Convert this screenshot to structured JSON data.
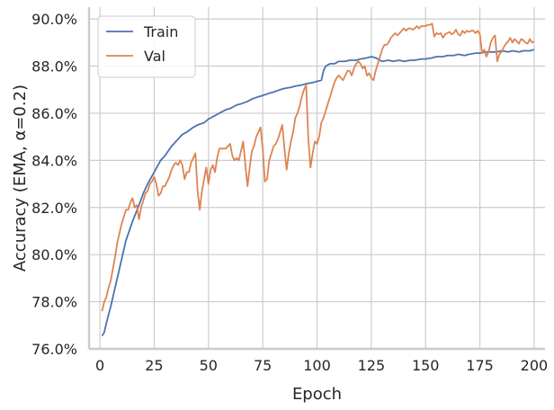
{
  "chart_data": {
    "type": "line",
    "title": "",
    "xlabel": "Epoch",
    "ylabel": "Accuracy (EMA, α=0.2)",
    "xlim": [
      -5,
      205
    ],
    "ylim": [
      0.76,
      0.905
    ],
    "xticks": [
      0,
      25,
      50,
      75,
      100,
      125,
      150,
      175,
      200
    ],
    "xtick_labels": [
      "0",
      "25",
      "50",
      "75",
      "100",
      "125",
      "150",
      "175",
      "200"
    ],
    "yticks": [
      0.76,
      0.78,
      0.8,
      0.82,
      0.84,
      0.86,
      0.88,
      0.9
    ],
    "ytick_labels": [
      "76.0%",
      "78.0%",
      "80.0%",
      "82.0%",
      "84.0%",
      "86.0%",
      "88.0%",
      "90.0%"
    ],
    "grid": true,
    "legend_position": "top-left",
    "series": [
      {
        "name": "Train",
        "color": "#4c72b0",
        "points": [
          [
            1,
            0.7655
          ],
          [
            2,
            0.767
          ],
          [
            3,
            0.771
          ],
          [
            5,
            0.778
          ],
          [
            8,
            0.79
          ],
          [
            10,
            0.798
          ],
          [
            12,
            0.806
          ],
          [
            15,
            0.814
          ],
          [
            18,
            0.821
          ],
          [
            20,
            0.826
          ],
          [
            22,
            0.83
          ],
          [
            25,
            0.835
          ],
          [
            28,
            0.84
          ],
          [
            30,
            0.842
          ],
          [
            33,
            0.846
          ],
          [
            35,
            0.848
          ],
          [
            38,
            0.851
          ],
          [
            40,
            0.852
          ],
          [
            43,
            0.854
          ],
          [
            45,
            0.855
          ],
          [
            48,
            0.856
          ],
          [
            50,
            0.8575
          ],
          [
            53,
            0.859
          ],
          [
            55,
            0.86
          ],
          [
            58,
            0.8615
          ],
          [
            60,
            0.862
          ],
          [
            63,
            0.8635
          ],
          [
            65,
            0.864
          ],
          [
            68,
            0.865
          ],
          [
            70,
            0.866
          ],
          [
            73,
            0.867
          ],
          [
            75,
            0.8675
          ],
          [
            78,
            0.8685
          ],
          [
            80,
            0.869
          ],
          [
            83,
            0.87
          ],
          [
            85,
            0.8705
          ],
          [
            88,
            0.871
          ],
          [
            90,
            0.8715
          ],
          [
            93,
            0.872
          ],
          [
            95,
            0.8725
          ],
          [
            98,
            0.873
          ],
          [
            100,
            0.8735
          ],
          [
            102,
            0.874
          ],
          [
            103,
            0.878
          ],
          [
            104,
            0.88
          ],
          [
            106,
            0.881
          ],
          [
            108,
            0.881
          ],
          [
            110,
            0.882
          ],
          [
            113,
            0.882
          ],
          [
            115,
            0.8825
          ],
          [
            118,
            0.8825
          ],
          [
            120,
            0.883
          ],
          [
            123,
            0.8835
          ],
          [
            125,
            0.884
          ],
          [
            127,
            0.8835
          ],
          [
            130,
            0.882
          ],
          [
            133,
            0.8825
          ],
          [
            135,
            0.882
          ],
          [
            138,
            0.8825
          ],
          [
            140,
            0.882
          ],
          [
            143,
            0.8825
          ],
          [
            145,
            0.8825
          ],
          [
            148,
            0.883
          ],
          [
            150,
            0.883
          ],
          [
            153,
            0.8835
          ],
          [
            155,
            0.884
          ],
          [
            158,
            0.884
          ],
          [
            160,
            0.8845
          ],
          [
            163,
            0.8845
          ],
          [
            165,
            0.885
          ],
          [
            168,
            0.8845
          ],
          [
            170,
            0.885
          ],
          [
            173,
            0.8855
          ],
          [
            175,
            0.8855
          ],
          [
            178,
            0.886
          ],
          [
            180,
            0.886
          ],
          [
            183,
            0.886
          ],
          [
            185,
            0.8865
          ],
          [
            188,
            0.886
          ],
          [
            190,
            0.8865
          ],
          [
            193,
            0.886
          ],
          [
            195,
            0.8865
          ],
          [
            198,
            0.8865
          ],
          [
            200,
            0.887
          ]
        ]
      },
      {
        "name": "Val",
        "color": "#dd8452",
        "points": [
          [
            1,
            0.776
          ],
          [
            2,
            0.78
          ],
          [
            3,
            0.782
          ],
          [
            4,
            0.786
          ],
          [
            5,
            0.789
          ],
          [
            6,
            0.794
          ],
          [
            7,
            0.799
          ],
          [
            8,
            0.805
          ],
          [
            9,
            0.809
          ],
          [
            10,
            0.813
          ],
          [
            11,
            0.816
          ],
          [
            12,
            0.819
          ],
          [
            13,
            0.819
          ],
          [
            14,
            0.822
          ],
          [
            15,
            0.824
          ],
          [
            16,
            0.82
          ],
          [
            17,
            0.821
          ],
          [
            18,
            0.815
          ],
          [
            19,
            0.82
          ],
          [
            20,
            0.823
          ],
          [
            21,
            0.826
          ],
          [
            22,
            0.827
          ],
          [
            23,
            0.83
          ],
          [
            24,
            0.831
          ],
          [
            25,
            0.833
          ],
          [
            26,
            0.83
          ],
          [
            27,
            0.825
          ],
          [
            28,
            0.826
          ],
          [
            29,
            0.829
          ],
          [
            30,
            0.829
          ],
          [
            31,
            0.831
          ],
          [
            32,
            0.833
          ],
          [
            33,
            0.836
          ],
          [
            34,
            0.838
          ],
          [
            35,
            0.839
          ],
          [
            36,
            0.838
          ],
          [
            37,
            0.84
          ],
          [
            38,
            0.838
          ],
          [
            39,
            0.832
          ],
          [
            40,
            0.835
          ],
          [
            41,
            0.835
          ],
          [
            42,
            0.839
          ],
          [
            43,
            0.841
          ],
          [
            44,
            0.843
          ],
          [
            45,
            0.827
          ],
          [
            46,
            0.819
          ],
          [
            47,
            0.827
          ],
          [
            48,
            0.832
          ],
          [
            49,
            0.837
          ],
          [
            50,
            0.83
          ],
          [
            51,
            0.836
          ],
          [
            52,
            0.838
          ],
          [
            53,
            0.835
          ],
          [
            54,
            0.841
          ],
          [
            55,
            0.845
          ],
          [
            56,
            0.845
          ],
          [
            57,
            0.845
          ],
          [
            58,
            0.845
          ],
          [
            59,
            0.846
          ],
          [
            60,
            0.847
          ],
          [
            61,
            0.842
          ],
          [
            62,
            0.84
          ],
          [
            63,
            0.841
          ],
          [
            64,
            0.84
          ],
          [
            65,
            0.844
          ],
          [
            66,
            0.848
          ],
          [
            67,
            0.838
          ],
          [
            68,
            0.829
          ],
          [
            69,
            0.837
          ],
          [
            70,
            0.844
          ],
          [
            71,
            0.846
          ],
          [
            72,
            0.85
          ],
          [
            73,
            0.852
          ],
          [
            74,
            0.854
          ],
          [
            75,
            0.845
          ],
          [
            76,
            0.831
          ],
          [
            77,
            0.832
          ],
          [
            78,
            0.84
          ],
          [
            79,
            0.843
          ],
          [
            80,
            0.846
          ],
          [
            81,
            0.847
          ],
          [
            82,
            0.849
          ],
          [
            83,
            0.852
          ],
          [
            84,
            0.855
          ],
          [
            85,
            0.845
          ],
          [
            86,
            0.836
          ],
          [
            87,
            0.843
          ],
          [
            88,
            0.848
          ],
          [
            89,
            0.852
          ],
          [
            90,
            0.858
          ],
          [
            91,
            0.86
          ],
          [
            92,
            0.863
          ],
          [
            93,
            0.867
          ],
          [
            94,
            0.87
          ],
          [
            95,
            0.872
          ],
          [
            96,
            0.849
          ],
          [
            97,
            0.837
          ],
          [
            98,
            0.843
          ],
          [
            99,
            0.848
          ],
          [
            100,
            0.847
          ],
          [
            101,
            0.85
          ],
          [
            102,
            0.856
          ],
          [
            103,
            0.858
          ],
          [
            104,
            0.861
          ],
          [
            105,
            0.864
          ],
          [
            106,
            0.867
          ],
          [
            107,
            0.87
          ],
          [
            108,
            0.873
          ],
          [
            109,
            0.875
          ],
          [
            110,
            0.876
          ],
          [
            111,
            0.875
          ],
          [
            112,
            0.874
          ],
          [
            113,
            0.876
          ],
          [
            114,
            0.878
          ],
          [
            115,
            0.878
          ],
          [
            116,
            0.876
          ],
          [
            117,
            0.879
          ],
          [
            118,
            0.881
          ],
          [
            119,
            0.882
          ],
          [
            120,
            0.881
          ],
          [
            121,
            0.879
          ],
          [
            122,
            0.88
          ],
          [
            123,
            0.876
          ],
          [
            124,
            0.877
          ],
          [
            125,
            0.875
          ],
          [
            126,
            0.874
          ],
          [
            127,
            0.878
          ],
          [
            128,
            0.881
          ],
          [
            129,
            0.884
          ],
          [
            130,
            0.887
          ],
          [
            131,
            0.889
          ],
          [
            132,
            0.889
          ],
          [
            133,
            0.89
          ],
          [
            134,
            0.892
          ],
          [
            135,
            0.893
          ],
          [
            136,
            0.894
          ],
          [
            137,
            0.893
          ],
          [
            138,
            0.894
          ],
          [
            139,
            0.895
          ],
          [
            140,
            0.896
          ],
          [
            141,
            0.895
          ],
          [
            142,
            0.896
          ],
          [
            143,
            0.896
          ],
          [
            144,
            0.8955
          ],
          [
            145,
            0.896
          ],
          [
            146,
            0.897
          ],
          [
            147,
            0.896
          ],
          [
            148,
            0.897
          ],
          [
            149,
            0.897
          ],
          [
            150,
            0.897
          ],
          [
            151,
            0.8975
          ],
          [
            152,
            0.8975
          ],
          [
            153,
            0.898
          ],
          [
            154,
            0.8925
          ],
          [
            155,
            0.894
          ],
          [
            156,
            0.8935
          ],
          [
            157,
            0.894
          ],
          [
            158,
            0.892
          ],
          [
            159,
            0.8935
          ],
          [
            160,
            0.894
          ],
          [
            161,
            0.8945
          ],
          [
            162,
            0.8935
          ],
          [
            163,
            0.894
          ],
          [
            164,
            0.8955
          ],
          [
            165,
            0.8935
          ],
          [
            166,
            0.893
          ],
          [
            167,
            0.895
          ],
          [
            168,
            0.894
          ],
          [
            169,
            0.895
          ],
          [
            170,
            0.8945
          ],
          [
            171,
            0.895
          ],
          [
            172,
            0.895
          ],
          [
            173,
            0.894
          ],
          [
            174,
            0.895
          ],
          [
            175,
            0.8935
          ],
          [
            176,
            0.8855
          ],
          [
            177,
            0.887
          ],
          [
            178,
            0.884
          ],
          [
            179,
            0.886
          ],
          [
            180,
            0.89
          ],
          [
            181,
            0.892
          ],
          [
            182,
            0.893
          ],
          [
            183,
            0.882
          ],
          [
            184,
            0.885
          ],
          [
            185,
            0.886
          ],
          [
            186,
            0.888
          ],
          [
            187,
            0.8895
          ],
          [
            188,
            0.8905
          ],
          [
            189,
            0.892
          ],
          [
            190,
            0.89
          ],
          [
            191,
            0.8915
          ],
          [
            192,
            0.8905
          ],
          [
            193,
            0.8895
          ],
          [
            194,
            0.8915
          ],
          [
            195,
            0.891
          ],
          [
            196,
            0.89
          ],
          [
            197,
            0.8895
          ],
          [
            198,
            0.8915
          ],
          [
            199,
            0.89
          ],
          [
            200,
            0.8905
          ]
        ]
      }
    ]
  }
}
